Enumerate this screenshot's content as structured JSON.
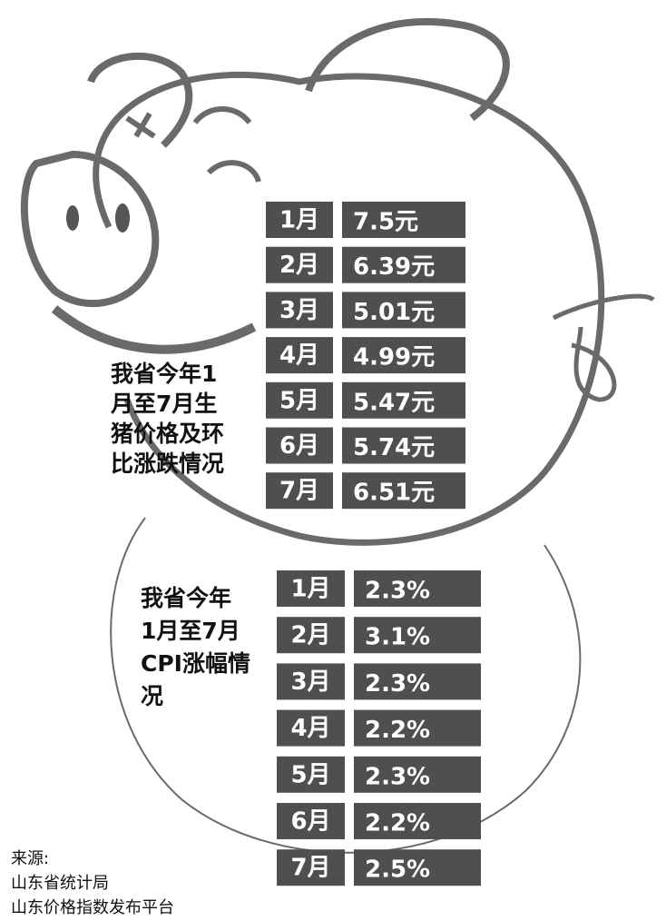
{
  "pork": {
    "caption": [
      "我省今年1",
      "月至7月生",
      "猪价格及环",
      "比涨跌情况"
    ],
    "rows": [
      [
        "1月",
        "7.5元"
      ],
      [
        "2月",
        "6.39元"
      ],
      [
        "3月",
        "5.01元"
      ],
      [
        "4月",
        "4.99元"
      ],
      [
        "5月",
        "5.47元"
      ],
      [
        "6月",
        "5.74元"
      ],
      [
        "7月",
        "6.51元"
      ]
    ]
  },
  "cpi": {
    "caption": [
      "我省今年",
      "1月至7月",
      "CPI涨幅情",
      "况"
    ],
    "rows": [
      [
        "1月",
        "2.3%"
      ],
      [
        "2月",
        "3.1%"
      ],
      [
        "3月",
        "2.3%"
      ],
      [
        "4月",
        "2.2%"
      ],
      [
        "5月",
        "2.3%"
      ],
      [
        "6月",
        "2.2%"
      ],
      [
        "7月",
        "2.5%"
      ]
    ]
  },
  "source": [
    "来源:",
    "山东省统计局",
    "山东价格指数发布平台"
  ]
}
